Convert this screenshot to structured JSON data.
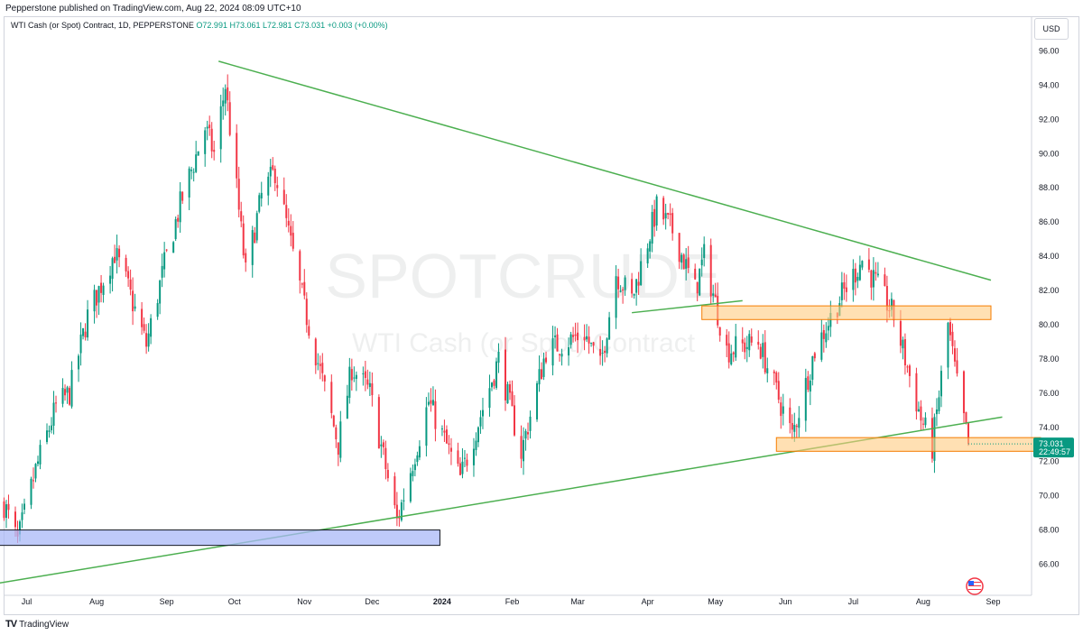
{
  "header": {
    "publisher_line": "Pepperstone published on TradingView.com, Aug 22, 2024 08:09 UTC+10"
  },
  "legend": {
    "symbol": "WTI Cash (or Spot) Contract, 1D, PEPPERSTONE",
    "open": "O72.991",
    "high": "H73.061",
    "low": "L72.981",
    "close": "C73.031",
    "change": "+0.003 (+0.00%)"
  },
  "currency_button": "USD",
  "watermark": {
    "ticker": "SPOTCRUDE",
    "name": "WTI Cash (or Spot) Contract"
  },
  "price_tag": {
    "price": "73.031",
    "countdown": "22:49:57"
  },
  "footer": {
    "brand": "TradingView"
  },
  "colors": {
    "up": "#089981",
    "down": "#f23645",
    "trendline": "#4caf50",
    "support_zone": "#ffcc80",
    "support_zone_border": "#f57c00",
    "blue_zone": "#aab8f7",
    "price_tag_bg": "#089981"
  },
  "chart_data": {
    "type": "candlestick",
    "symbol": "WTI Cash (or Spot) Contract",
    "interval": "1D",
    "ylim": [
      64.5,
      97
    ],
    "y_ticks": [
      "66.00",
      "68.00",
      "70.00",
      "72.00",
      "74.00",
      "76.00",
      "78.00",
      "80.00",
      "82.00",
      "84.00",
      "86.00",
      "88.00",
      "90.00",
      "92.00",
      "94.00",
      "96.00"
    ],
    "x_ticks": [
      "Jul",
      "Aug",
      "Sep",
      "Oct",
      "Nov",
      "Dec",
      "2024",
      "Feb",
      "Mar",
      "Apr",
      "May",
      "Jun",
      "Jul",
      "Aug",
      "Sep"
    ],
    "x_tick_dates": [
      "2023-07-01",
      "2023-08-01",
      "2023-09-01",
      "2023-10-01",
      "2023-11-01",
      "2023-12-01",
      "2024-01-01",
      "2024-02-01",
      "2024-03-01",
      "2024-04-01",
      "2024-05-01",
      "2024-06-01",
      "2024-07-01",
      "2024-08-01",
      "2024-09-01"
    ],
    "key_points": [
      [
        "2023-06-21",
        69.5
      ],
      [
        "2023-06-27",
        67.3
      ],
      [
        "2023-07-05",
        71.5
      ],
      [
        "2023-07-14",
        75.2
      ],
      [
        "2023-07-20",
        76.0
      ],
      [
        "2023-07-28",
        80.5
      ],
      [
        "2023-08-09",
        84.2
      ],
      [
        "2023-08-14",
        82.5
      ],
      [
        "2023-08-23",
        78.8
      ],
      [
        "2023-08-31",
        83.5
      ],
      [
        "2023-09-07",
        87.0
      ],
      [
        "2023-09-18",
        91.5
      ],
      [
        "2023-09-22",
        90.0
      ],
      [
        "2023-09-27",
        94.0
      ],
      [
        "2023-10-06",
        83.0
      ],
      [
        "2023-10-13",
        87.5
      ],
      [
        "2023-10-19",
        89.0
      ],
      [
        "2023-11-01",
        81.0
      ],
      [
        "2023-11-16",
        73.0
      ],
      [
        "2023-11-22",
        77.5
      ],
      [
        "2023-11-30",
        76.0
      ],
      [
        "2023-12-12",
        68.5
      ],
      [
        "2023-12-26",
        75.5
      ],
      [
        "2024-01-09",
        71.0
      ],
      [
        "2024-01-26",
        78.0
      ],
      [
        "2024-02-05",
        72.5
      ],
      [
        "2024-02-16",
        78.5
      ],
      [
        "2024-03-04",
        79.5
      ],
      [
        "2024-03-11",
        77.5
      ],
      [
        "2024-03-18",
        83.0
      ],
      [
        "2024-03-25",
        81.5
      ],
      [
        "2024-04-05",
        86.8
      ],
      [
        "2024-04-12",
        85.5
      ],
      [
        "2024-04-22",
        82.0
      ],
      [
        "2024-04-26",
        84.0
      ],
      [
        "2024-05-06",
        78.5
      ],
      [
        "2024-05-20",
        79.0
      ],
      [
        "2024-06-04",
        73.5
      ],
      [
        "2024-06-14",
        78.5
      ],
      [
        "2024-06-25",
        81.5
      ],
      [
        "2024-07-05",
        83.8
      ],
      [
        "2024-07-15",
        81.5
      ],
      [
        "2024-07-19",
        80.5
      ],
      [
        "2024-07-31",
        74.5
      ],
      [
        "2024-08-05",
        72.8
      ],
      [
        "2024-08-12",
        80.0
      ],
      [
        "2024-08-16",
        76.5
      ],
      [
        "2024-08-21",
        73.03
      ]
    ],
    "drawings": [
      {
        "kind": "trendline",
        "from": [
          "2023-09-24",
          95.4
        ],
        "to": [
          "2024-08-31",
          82.6
        ]
      },
      {
        "kind": "trendline",
        "from": [
          "2023-06-19",
          64.9
        ],
        "to": [
          "2024-09-05",
          74.6
        ]
      },
      {
        "kind": "trendline",
        "from": [
          "2024-03-25",
          80.7
        ],
        "to": [
          "2024-05-13",
          81.4
        ]
      },
      {
        "kind": "rectangle",
        "color": "orange",
        "from": [
          "2024-04-25",
          81.1
        ],
        "to": [
          "2024-08-31",
          80.3
        ]
      },
      {
        "kind": "rectangle",
        "color": "orange",
        "from": [
          "2024-05-28",
          73.4
        ],
        "to": [
          "2024-09-22",
          72.6
        ]
      },
      {
        "kind": "rectangle",
        "color": "blue",
        "from": [
          "2023-06-19",
          68.0
        ],
        "to": [
          "2023-12-31",
          67.1
        ]
      }
    ],
    "last_price": 73.031
  }
}
